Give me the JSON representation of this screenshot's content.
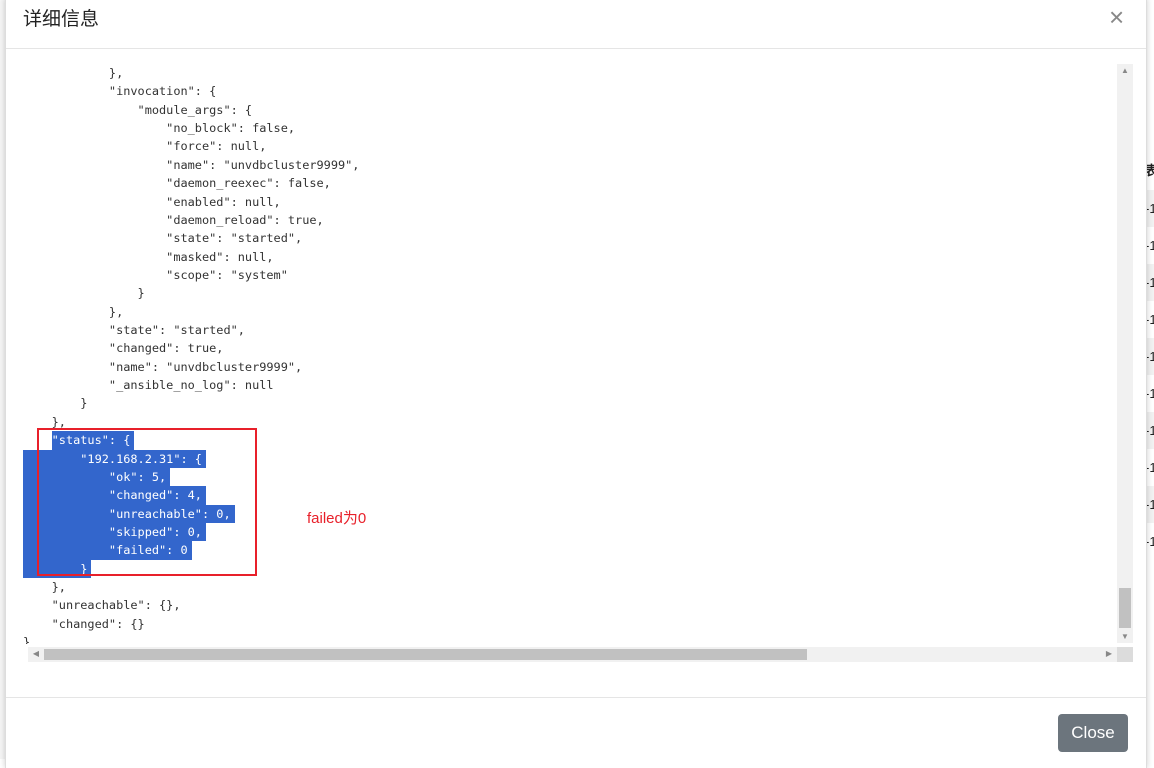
{
  "modal": {
    "title": "详细信息",
    "close_label": "Close",
    "annotation": "failed为0"
  },
  "background": {
    "header_fragment": "表",
    "row_fragment": "-1"
  },
  "code_lines": [
    {
      "text": "            },"
    },
    {
      "text": "            \"invocation\": {"
    },
    {
      "text": "                \"module_args\": {"
    },
    {
      "text": "                    \"no_block\": false,"
    },
    {
      "text": "                    \"force\": null,"
    },
    {
      "text": "                    \"name\": \"unvdbcluster9999\","
    },
    {
      "text": "                    \"daemon_reexec\": false,"
    },
    {
      "text": "                    \"enabled\": null,"
    },
    {
      "text": "                    \"daemon_reload\": true,"
    },
    {
      "text": "                    \"state\": \"started\","
    },
    {
      "text": "                    \"masked\": null,"
    },
    {
      "text": "                    \"scope\": \"system\""
    },
    {
      "text": "                }"
    },
    {
      "text": "            },"
    },
    {
      "text": "            \"state\": \"started\","
    },
    {
      "text": "            \"changed\": true,"
    },
    {
      "text": "            \"name\": \"unvdbcluster9999\","
    },
    {
      "text": "            \"_ansible_no_log\": null"
    },
    {
      "text": "        }"
    },
    {
      "text": "    },"
    },
    {
      "lead": "    ",
      "text": "\"status\": {",
      "sel": "t"
    },
    {
      "text": "        \"192.168.2.31\": {",
      "sel": "f"
    },
    {
      "text": "            \"ok\": 5,",
      "sel": "f"
    },
    {
      "text": "            \"changed\": 4,",
      "sel": "f"
    },
    {
      "text": "            \"unreachable\": 0,",
      "sel": "f"
    },
    {
      "text": "            \"skipped\": 0,",
      "sel": "f"
    },
    {
      "text": "            \"failed\": 0",
      "sel": "f"
    },
    {
      "text": "        }",
      "sel": "f"
    },
    {
      "text": "    },"
    },
    {
      "text": "    \"unreachable\": {},"
    },
    {
      "text": "    \"changed\": {}"
    },
    {
      "text": "}"
    }
  ]
}
